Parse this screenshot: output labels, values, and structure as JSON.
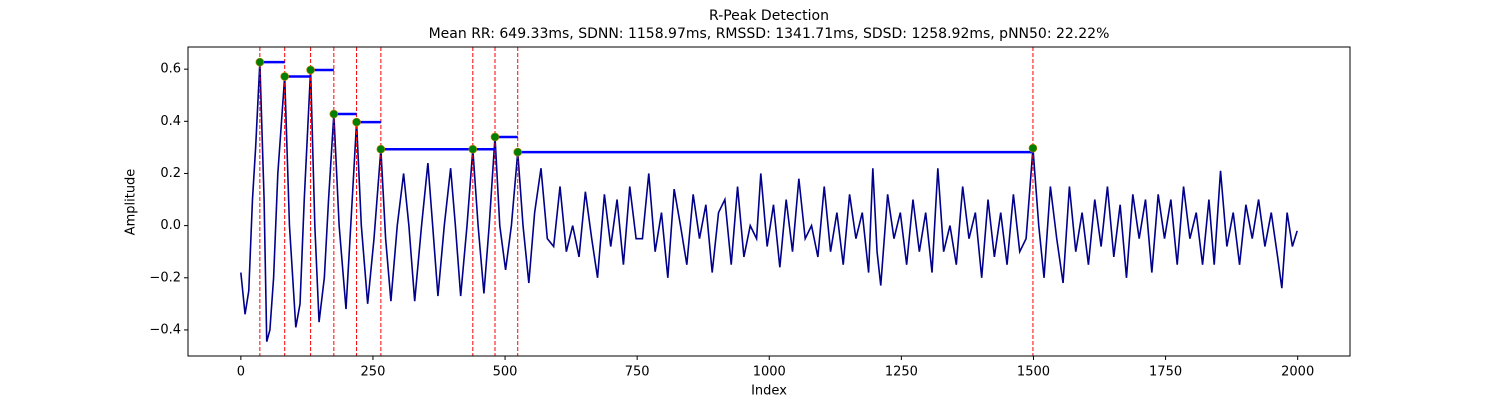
{
  "chart_data": {
    "type": "line",
    "title": "R-Peak Detection",
    "subtitle": "Mean RR: 649.33ms, SDNN: 1158.97ms, RMSSD: 1341.71ms, SDSD: 1258.92ms, pNN50: 22.22%",
    "x_label": "Index",
    "y_label": "Amplitude",
    "color": "#00008b",
    "x": [
      0,
      8,
      15,
      22,
      28,
      36,
      44,
      49,
      55,
      62,
      70,
      83,
      92,
      104,
      112,
      120,
      132,
      140,
      148,
      158,
      166,
      176,
      186,
      199,
      208,
      219,
      228,
      240,
      252,
      265,
      274,
      284,
      296,
      308,
      318,
      329,
      342,
      354,
      363,
      373,
      385,
      397,
      406,
      416,
      428,
      439,
      449,
      460,
      470,
      481,
      490,
      501,
      512,
      524,
      534,
      545,
      556,
      568,
      580,
      592,
      604,
      616,
      628,
      640,
      652,
      664,
      675,
      688,
      700,
      712,
      724,
      736,
      748,
      760,
      772,
      784,
      796,
      808,
      820,
      832,
      844,
      856,
      868,
      880,
      892,
      904,
      916,
      928,
      940,
      952,
      964,
      976,
      984,
      996,
      1008,
      1020,
      1032,
      1044,
      1056,
      1068,
      1080,
      1092,
      1104,
      1116,
      1128,
      1140,
      1152,
      1164,
      1176,
      1188,
      1196,
      1204,
      1211,
      1224,
      1236,
      1248,
      1260,
      1272,
      1284,
      1296,
      1308,
      1319,
      1330,
      1342,
      1354,
      1366,
      1378,
      1390,
      1402,
      1414,
      1426,
      1438,
      1450,
      1462,
      1474,
      1486,
      1499,
      1510,
      1520,
      1532,
      1544,
      1556,
      1568,
      1580,
      1592,
      1604,
      1616,
      1628,
      1640,
      1652,
      1664,
      1676,
      1688,
      1700,
      1712,
      1724,
      1736,
      1748,
      1760,
      1772,
      1784,
      1796,
      1808,
      1820,
      1832,
      1842,
      1854,
      1866,
      1878,
      1890,
      1902,
      1914,
      1926,
      1938,
      1950,
      1962,
      1970,
      1980,
      1990,
      1999
    ],
    "values": [
      -0.18,
      -0.34,
      -0.25,
      0.1,
      0.3,
      0.627,
      0.1,
      -0.445,
      -0.4,
      -0.2,
      0.2,
      0.572,
      0.0,
      -0.39,
      -0.3,
      0.1,
      0.597,
      0.0,
      -0.37,
      -0.2,
      0.1,
      0.428,
      0.0,
      -0.32,
      0.0,
      0.397,
      0.0,
      -0.3,
      -0.05,
      0.293,
      -0.05,
      -0.29,
      0.0,
      0.2,
      0.0,
      -0.29,
      0.0,
      0.24,
      0.0,
      -0.27,
      0.0,
      0.22,
      0.0,
      -0.27,
      0.0,
      0.293,
      0.0,
      -0.26,
      0.0,
      0.34,
      0.0,
      -0.17,
      0.0,
      0.282,
      0.0,
      -0.22,
      0.05,
      0.22,
      -0.05,
      -0.08,
      0.15,
      -0.1,
      0.0,
      -0.12,
      0.13,
      -0.05,
      -0.2,
      0.12,
      -0.08,
      0.1,
      -0.15,
      0.15,
      -0.05,
      -0.05,
      0.2,
      -0.1,
      0.05,
      -0.2,
      0.14,
      0.0,
      -0.15,
      0.12,
      -0.05,
      0.08,
      -0.18,
      0.05,
      0.1,
      -0.15,
      0.15,
      -0.12,
      0.0,
      -0.05,
      0.2,
      -0.08,
      0.08,
      -0.16,
      0.1,
      -0.1,
      0.18,
      -0.05,
      0.0,
      -0.12,
      0.15,
      -0.1,
      0.05,
      -0.15,
      0.12,
      -0.05,
      0.05,
      -0.18,
      0.22,
      -0.1,
      -0.23,
      0.12,
      -0.05,
      0.05,
      -0.15,
      0.1,
      -0.1,
      0.05,
      -0.18,
      0.22,
      -0.1,
      0.0,
      -0.15,
      0.15,
      -0.05,
      0.05,
      -0.2,
      0.1,
      -0.12,
      0.05,
      -0.15,
      0.12,
      -0.1,
      -0.05,
      0.297,
      0.0,
      -0.2,
      0.15,
      -0.05,
      -0.22,
      0.15,
      -0.1,
      0.05,
      -0.15,
      0.1,
      -0.08,
      0.15,
      -0.12,
      0.08,
      -0.2,
      0.12,
      -0.05,
      0.1,
      -0.18,
      0.12,
      -0.05,
      0.1,
      -0.15,
      0.15,
      -0.05,
      0.05,
      -0.15,
      0.1,
      -0.15,
      0.21,
      -0.08,
      0.05,
      -0.15,
      0.08,
      -0.05,
      0.1,
      -0.08,
      0.05,
      -0.12,
      -0.24,
      0.05,
      -0.08,
      -0.02
    ],
    "peaks": {
      "x": [
        36,
        83,
        132,
        176,
        219,
        265,
        439,
        481,
        524,
        1499
      ],
      "values": [
        0.627,
        0.572,
        0.597,
        0.428,
        0.397,
        0.293,
        0.293,
        0.34,
        0.282,
        0.297
      ],
      "color": "#008000",
      "line_color": "#ff0000",
      "interval_color": "#0000ff"
    },
    "xlim": [
      -100,
      2099
    ],
    "ylim": [
      -0.5,
      0.685
    ],
    "xticks": [
      0,
      250,
      500,
      750,
      1000,
      1250,
      1500,
      1750,
      2000
    ],
    "yticks": [
      {
        "value": -0.4,
        "label": "−0.4"
      },
      {
        "value": -0.2,
        "label": "−0.2"
      },
      {
        "value": 0,
        "label": "0.0"
      },
      0.2,
      0.4,
      0.6
    ]
  }
}
